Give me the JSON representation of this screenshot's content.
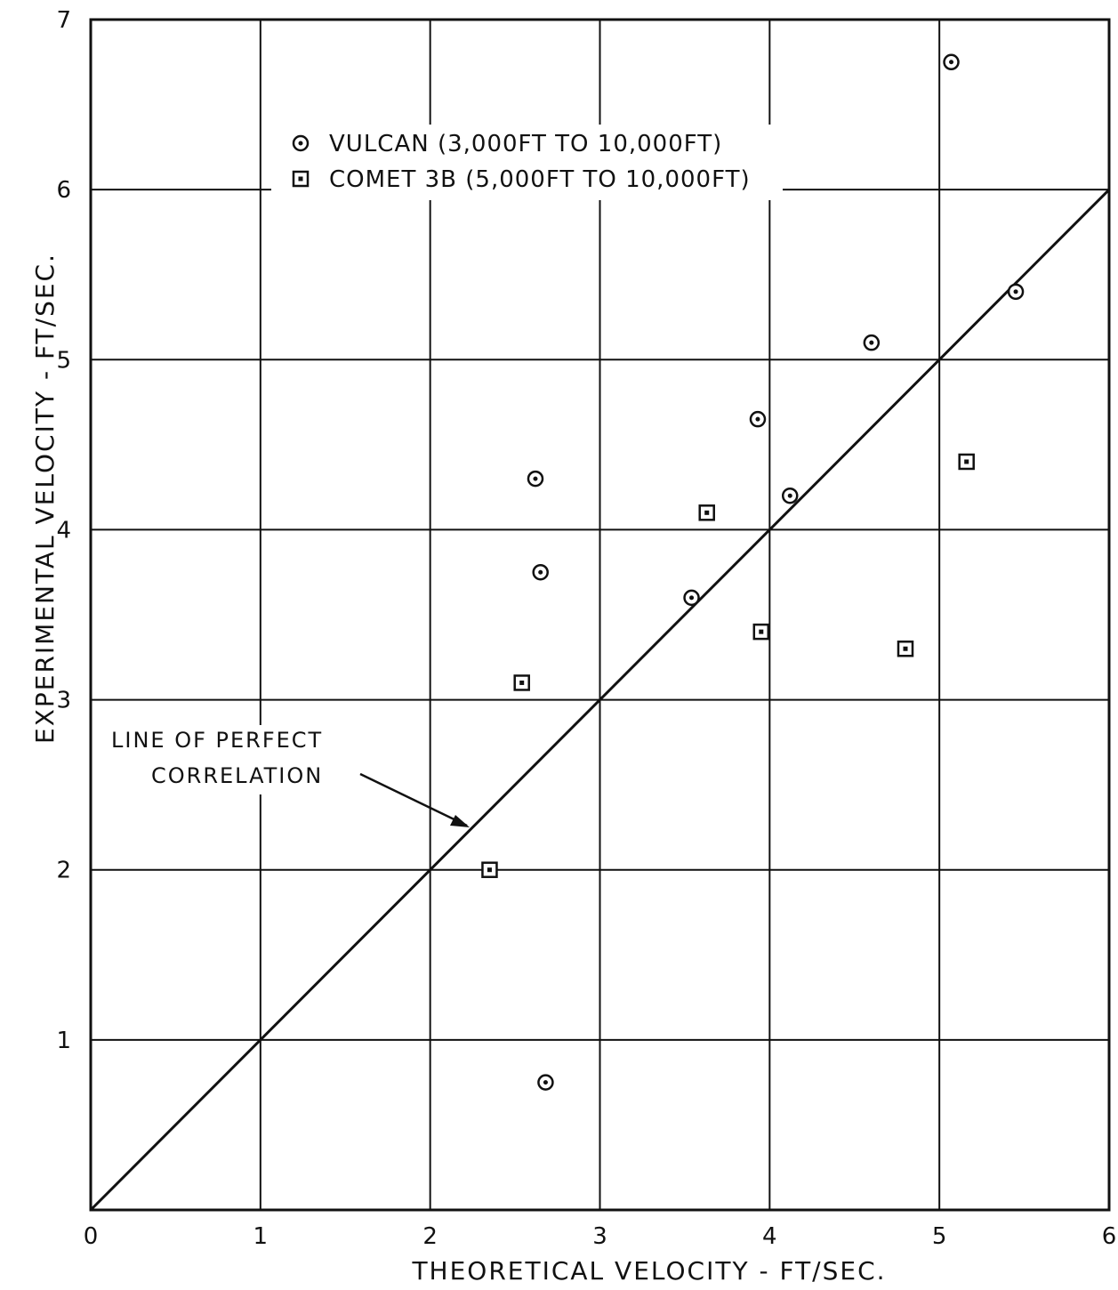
{
  "chart_data": {
    "type": "scatter",
    "title": "",
    "xlabel": "THEORETICAL  VELOCITY  -  FT/SEC.",
    "ylabel": "EXPERIMENTAL  VELOCITY  -  FT/SEC.",
    "xlim": [
      0,
      6
    ],
    "ylim": [
      0,
      7
    ],
    "xticks": [
      "0",
      "1",
      "2",
      "3",
      "4",
      "5",
      "6"
    ],
    "yticks": [
      "1",
      "2",
      "3",
      "4",
      "5",
      "6",
      "7"
    ],
    "grid": true,
    "legend_position": "top-center",
    "series": [
      {
        "name": "VULCAN (3,000FT TO 10,000FT)",
        "marker": "circle-dot",
        "points": [
          {
            "x": 2.62,
            "y": 4.3
          },
          {
            "x": 2.65,
            "y": 3.75
          },
          {
            "x": 2.68,
            "y": 0.75
          },
          {
            "x": 3.54,
            "y": 3.6
          },
          {
            "x": 3.93,
            "y": 4.65
          },
          {
            "x": 4.12,
            "y": 4.2
          },
          {
            "x": 4.6,
            "y": 5.1
          },
          {
            "x": 5.07,
            "y": 6.75
          },
          {
            "x": 5.45,
            "y": 5.4
          }
        ]
      },
      {
        "name": "COMET 3B (5,000FT TO 10,000FT)",
        "marker": "square-dot",
        "points": [
          {
            "x": 2.35,
            "y": 2.0
          },
          {
            "x": 2.54,
            "y": 3.1
          },
          {
            "x": 3.63,
            "y": 4.1
          },
          {
            "x": 3.95,
            "y": 3.4
          },
          {
            "x": 4.8,
            "y": 3.3
          },
          {
            "x": 5.16,
            "y": 4.4
          }
        ]
      }
    ],
    "reference_line": {
      "label": "LINE  OF  PERFECT CORRELATION",
      "label_line1": "LINE  OF  PERFECT",
      "label_line2": "CORRELATION",
      "from": [
        0,
        0
      ],
      "to": [
        6,
        6
      ]
    },
    "color": "#111111"
  }
}
